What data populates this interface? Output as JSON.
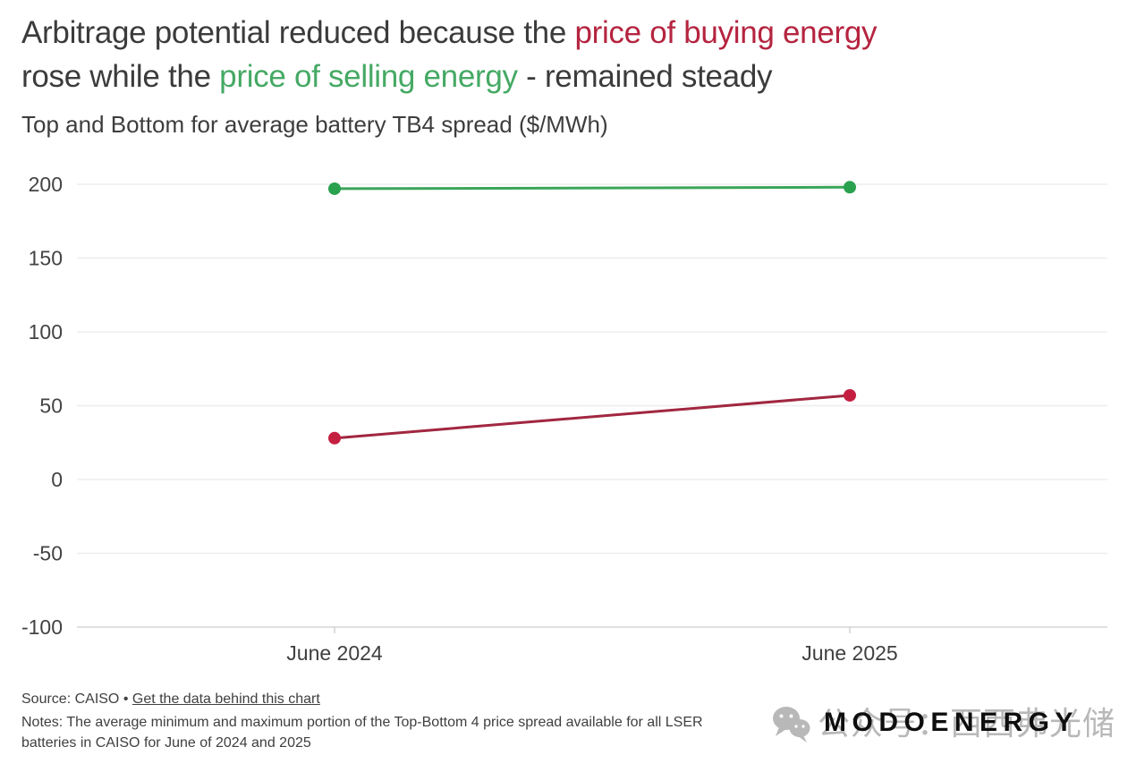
{
  "title": {
    "line1": [
      {
        "text": "Arbitrage potential reduced because the ",
        "color": "dark"
      },
      {
        "text": "price of buying energy",
        "color": "red"
      }
    ],
    "line2": [
      {
        "text": "rose while the ",
        "color": "dark"
      },
      {
        "text": "price of selling energy",
        "color": "green"
      },
      {
        "text": " - remained steady",
        "color": "dark"
      }
    ]
  },
  "subtitle": "Top and Bottom for average battery TB4 spread ($/MWh)",
  "chart_data": {
    "type": "line",
    "title": "Top and Bottom for average battery TB4 spread ($/MWh)",
    "categories": [
      "June 2024",
      "June 2025"
    ],
    "series": [
      {
        "id": "top",
        "name": "Top (price of selling energy)",
        "values": [
          197,
          198
        ],
        "line_color": "#3aa55a",
        "marker_color": "#2aa14f"
      },
      {
        "id": "bottom",
        "name": "Bottom (price of buying energy)",
        "values": [
          28,
          57
        ],
        "line_color": "#a1273f",
        "marker_color": "#c41f41"
      }
    ],
    "ylim": [
      -100,
      200
    ],
    "y_ticks": [
      200,
      150,
      100,
      50,
      0,
      -50,
      -100
    ],
    "xlabel": "",
    "ylabel": "",
    "grid": "horizontal",
    "legend": "none",
    "colors": {
      "grid": "#ededed",
      "axis": "#d6d6d6",
      "tick_text": "#3f3f3f"
    }
  },
  "footer": {
    "source_prefix": "Source: CAISO • ",
    "link_text": "Get the data behind this chart",
    "notes_lines": [
      "Notes: The average minimum and maximum portion of the Top-Bottom 4 price spread available for all LSER",
      "batteries in CAISO for June of 2024 and 2025"
    ]
  },
  "logo": {
    "text": "MODOENERGY"
  },
  "watermark": {
    "icon": "wechat-icon",
    "text": "公众号：西西弗光储",
    "color": "#8c8c8c"
  },
  "colors": {
    "title_dark": "#3b3b3b",
    "title_red": "#b5243f",
    "title_green": "#45a964",
    "background": "#ffffff"
  }
}
